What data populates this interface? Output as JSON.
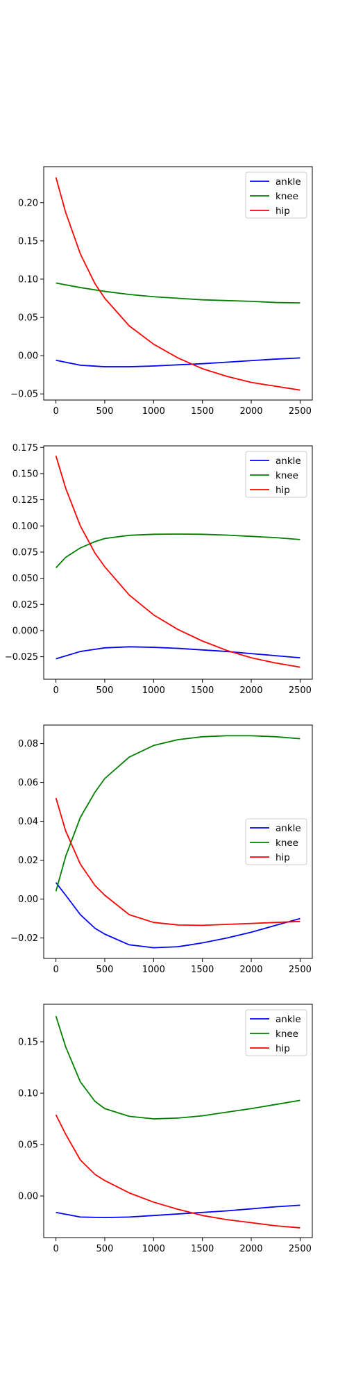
{
  "chart_data": [
    {
      "type": "line",
      "xlim": [
        -125,
        2625
      ],
      "ylim": [
        -0.058,
        0.247
      ],
      "xticks": [
        0,
        500,
        1000,
        1500,
        2000,
        2500
      ],
      "xtick_labels": [
        "0",
        "500",
        "1000",
        "1500",
        "2000",
        "2500"
      ],
      "yticks": [
        -0.05,
        0.0,
        0.05,
        0.1,
        0.15,
        0.2
      ],
      "ytick_labels": [
        "−0.05",
        "0.00",
        "0.05",
        "0.10",
        "0.15",
        "0.20"
      ],
      "grid": false,
      "legend_position": "upper right",
      "series": [
        {
          "name": "ankle",
          "color": "#0000ff",
          "x": [
            0,
            250,
            500,
            750,
            1000,
            1250,
            1500,
            1750,
            2000,
            2250,
            2500
          ],
          "y": [
            -0.006,
            -0.0125,
            -0.0145,
            -0.0145,
            -0.0135,
            -0.012,
            -0.0105,
            -0.0085,
            -0.0065,
            -0.0045,
            -0.003
          ]
        },
        {
          "name": "knee",
          "color": "#008000",
          "x": [
            0,
            250,
            500,
            750,
            1000,
            1250,
            1500,
            1750,
            2000,
            2250,
            2500
          ],
          "y": [
            0.095,
            0.089,
            0.084,
            0.08,
            0.077,
            0.075,
            0.073,
            0.072,
            0.071,
            0.0695,
            0.069
          ]
        },
        {
          "name": "hip",
          "color": "#ff0000",
          "x": [
            0,
            100,
            250,
            400,
            500,
            750,
            1000,
            1250,
            1500,
            1750,
            2000,
            2250,
            2500
          ],
          "y": [
            0.233,
            0.187,
            0.133,
            0.094,
            0.075,
            0.039,
            0.015,
            -0.003,
            -0.017,
            -0.027,
            -0.035,
            -0.04,
            -0.045
          ]
        }
      ]
    },
    {
      "type": "line",
      "xlim": [
        -125,
        2625
      ],
      "ylim": [
        -0.0465,
        0.1765
      ],
      "xticks": [
        0,
        500,
        1000,
        1500,
        2000,
        2500
      ],
      "xtick_labels": [
        "0",
        "500",
        "1000",
        "1500",
        "2000",
        "2500"
      ],
      "yticks": [
        -0.025,
        0.0,
        0.025,
        0.05,
        0.075,
        0.1,
        0.125,
        0.15,
        0.175
      ],
      "ytick_labels": [
        "−0.025",
        "0.000",
        "0.025",
        "0.050",
        "0.075",
        "0.100",
        "0.125",
        "0.150",
        "0.175"
      ],
      "grid": false,
      "legend_position": "upper right",
      "series": [
        {
          "name": "ankle",
          "color": "#0000ff",
          "x": [
            0,
            250,
            500,
            750,
            1000,
            1250,
            1500,
            1750,
            2000,
            2250,
            2500
          ],
          "y": [
            -0.027,
            -0.02,
            -0.0165,
            -0.0155,
            -0.016,
            -0.017,
            -0.0185,
            -0.02,
            -0.022,
            -0.024,
            -0.026
          ]
        },
        {
          "name": "knee",
          "color": "#008000",
          "x": [
            0,
            100,
            250,
            400,
            500,
            750,
            1000,
            1250,
            1500,
            1750,
            2000,
            2250,
            2500
          ],
          "y": [
            0.06,
            0.07,
            0.079,
            0.085,
            0.088,
            0.091,
            0.092,
            0.0922,
            0.092,
            0.0912,
            0.09,
            0.0888,
            0.087
          ]
        },
        {
          "name": "hip",
          "color": "#ff0000",
          "x": [
            0,
            100,
            250,
            400,
            500,
            750,
            1000,
            1250,
            1500,
            1750,
            2000,
            2250,
            2500
          ],
          "y": [
            0.167,
            0.136,
            0.1,
            0.074,
            0.061,
            0.034,
            0.015,
            0.001,
            -0.01,
            -0.019,
            -0.026,
            -0.031,
            -0.035
          ]
        }
      ]
    },
    {
      "type": "line",
      "xlim": [
        -125,
        2625
      ],
      "ylim": [
        -0.0305,
        0.0895
      ],
      "xticks": [
        0,
        500,
        1000,
        1500,
        2000,
        2500
      ],
      "xtick_labels": [
        "0",
        "500",
        "1000",
        "1500",
        "2000",
        "2500"
      ],
      "yticks": [
        -0.02,
        0.0,
        0.02,
        0.04,
        0.06,
        0.08
      ],
      "ytick_labels": [
        "−0.02",
        "0.00",
        "0.02",
        "0.04",
        "0.06",
        "0.08"
      ],
      "grid": false,
      "legend_position": "center right",
      "series": [
        {
          "name": "ankle",
          "color": "#0000ff",
          "x": [
            0,
            100,
            250,
            400,
            500,
            750,
            1000,
            1250,
            1500,
            1750,
            2000,
            2250,
            2500
          ],
          "y": [
            0.0085,
            0.002,
            -0.008,
            -0.015,
            -0.018,
            -0.0235,
            -0.025,
            -0.0245,
            -0.0225,
            -0.02,
            -0.017,
            -0.0135,
            -0.01
          ]
        },
        {
          "name": "knee",
          "color": "#008000",
          "x": [
            0,
            100,
            250,
            400,
            500,
            750,
            1000,
            1250,
            1500,
            1750,
            2000,
            2250,
            2500
          ],
          "y": [
            0.004,
            0.022,
            0.042,
            0.055,
            0.062,
            0.073,
            0.079,
            0.082,
            0.0835,
            0.084,
            0.084,
            0.0835,
            0.0825
          ]
        },
        {
          "name": "hip",
          "color": "#ff0000",
          "x": [
            0,
            100,
            250,
            400,
            500,
            750,
            1000,
            1250,
            1500,
            1750,
            2000,
            2250,
            2500
          ],
          "y": [
            0.052,
            0.035,
            0.018,
            0.007,
            0.002,
            -0.008,
            -0.012,
            -0.0133,
            -0.0135,
            -0.013,
            -0.0125,
            -0.012,
            -0.0115
          ]
        }
      ]
    },
    {
      "type": "line",
      "xlim": [
        -125,
        2625
      ],
      "ylim": [
        -0.0405,
        0.1865
      ],
      "xticks": [
        0,
        500,
        1000,
        1500,
        2000,
        2500
      ],
      "xtick_labels": [
        "0",
        "500",
        "1000",
        "1500",
        "2000",
        "2500"
      ],
      "yticks": [
        0.0,
        0.05,
        0.1,
        0.15
      ],
      "ytick_labels": [
        "0.00",
        "0.05",
        "0.10",
        "0.15"
      ],
      "grid": false,
      "legend_position": "upper right",
      "series": [
        {
          "name": "ankle",
          "color": "#0000ff",
          "x": [
            0,
            250,
            500,
            750,
            1000,
            1250,
            1500,
            1750,
            2000,
            2250,
            2500
          ],
          "y": [
            -0.016,
            -0.0205,
            -0.021,
            -0.0205,
            -0.019,
            -0.0175,
            -0.016,
            -0.0145,
            -0.0125,
            -0.0105,
            -0.009
          ]
        },
        {
          "name": "knee",
          "color": "#008000",
          "x": [
            0,
            100,
            250,
            400,
            500,
            750,
            1000,
            1250,
            1500,
            1750,
            2000,
            2250,
            2500
          ],
          "y": [
            0.175,
            0.145,
            0.111,
            0.092,
            0.085,
            0.0775,
            0.075,
            0.0758,
            0.078,
            0.0815,
            0.085,
            0.089,
            0.093
          ]
        },
        {
          "name": "hip",
          "color": "#ff0000",
          "x": [
            0,
            100,
            250,
            400,
            500,
            750,
            1000,
            1250,
            1500,
            1750,
            2000,
            2250,
            2500
          ],
          "y": [
            0.079,
            0.06,
            0.035,
            0.021,
            0.015,
            0.003,
            -0.006,
            -0.013,
            -0.019,
            -0.023,
            -0.026,
            -0.029,
            -0.031
          ]
        }
      ]
    }
  ]
}
